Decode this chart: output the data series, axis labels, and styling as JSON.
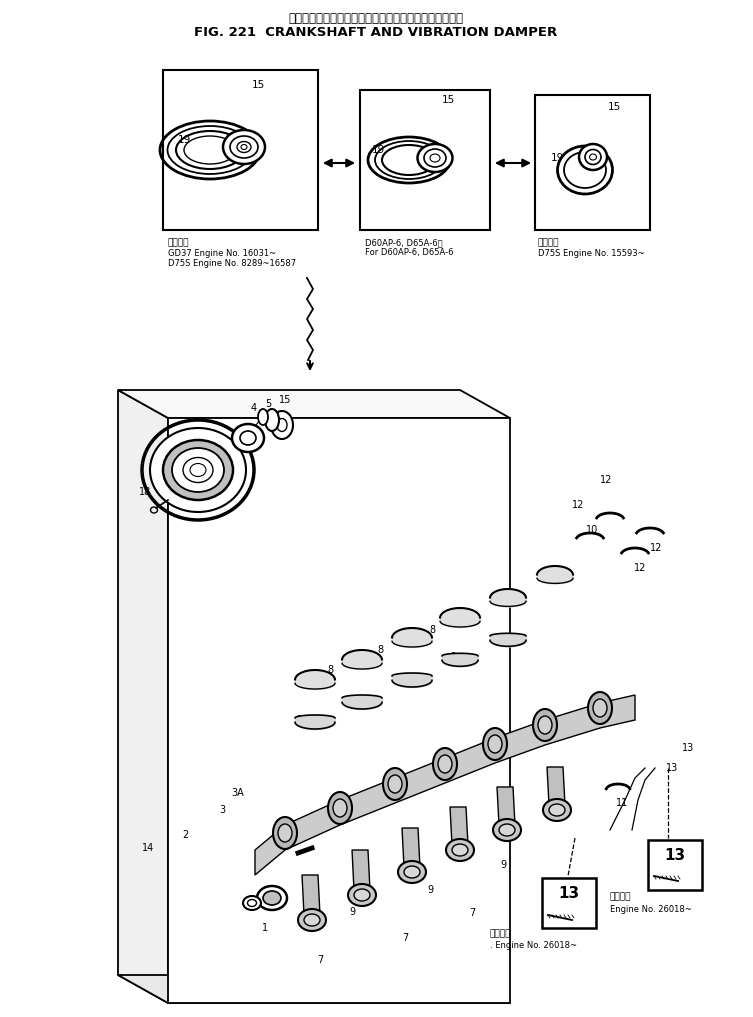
{
  "title_japanese": "クランクシャフト　および　バイブレーション　ダンパ",
  "title_english": "FIG. 221  CRANKSHAFT AND VIBRATION DAMPER",
  "bg_color": "#ffffff",
  "box1_caption1": "適用号等",
  "box1_caption2": "GD37 Engine No. 16031~",
  "box1_caption3": "D75S Engine No. 8289~16587",
  "box2_caption1": "D60AP-6, D65A-6用",
  "box2_caption2": "For D60AP-6, D65A-6",
  "box3_caption1": "適用号等",
  "box3_caption2": "D75S Engine No. 15593~",
  "bottom_box1_caption1": "適用号等",
  "bottom_box1_caption2": ". Engine No. 26018~",
  "bottom_box2_caption1": "適用号等",
  "bottom_box2_caption2": "Engine No. 26018~"
}
